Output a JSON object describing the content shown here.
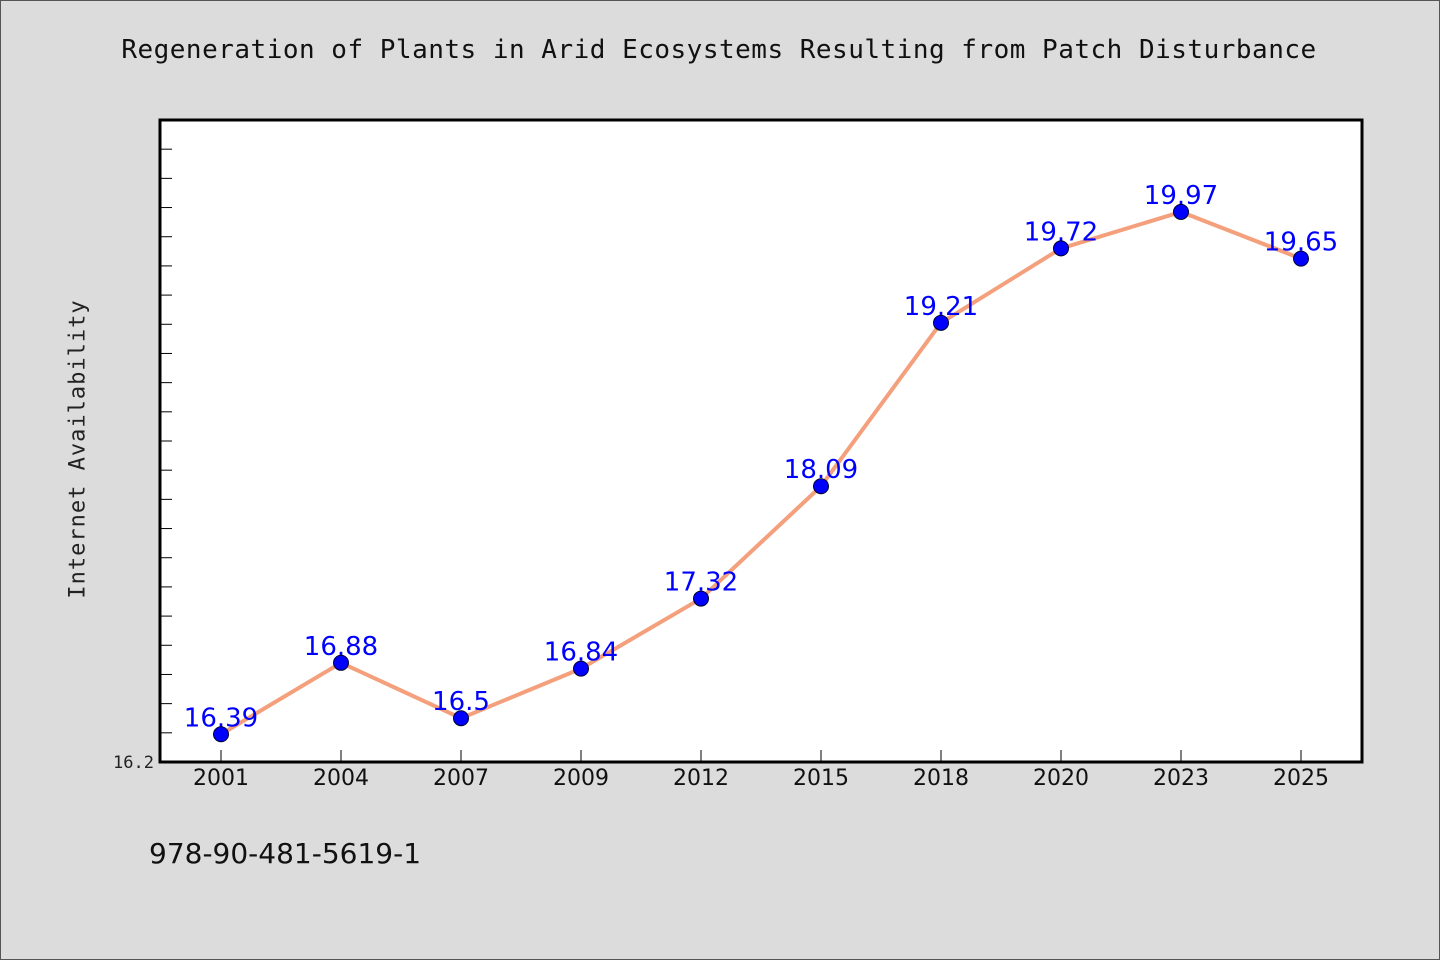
{
  "chart_data": {
    "type": "line",
    "title": "Regeneration of Plants in Arid Ecosystems Resulting from Patch Disturbance",
    "xlabel": "",
    "ylabel": "Internet Availability",
    "categories": [
      "2001",
      "2004",
      "2007",
      "2009",
      "2012",
      "2015",
      "2018",
      "2020",
      "2023",
      "2025"
    ],
    "series": [
      {
        "values": [
          16.39,
          16.88,
          16.5,
          16.84,
          17.32,
          18.09,
          19.21,
          19.72,
          19.97,
          19.65
        ]
      }
    ],
    "data_labels": [
      "16.39",
      "16.88",
      "16.5",
      "16.84",
      "17.32",
      "18.09",
      "19.21",
      "19.72",
      "19.97",
      "19.65"
    ],
    "ylim": [
      16.2,
      20.6
    ],
    "yticks": [
      16.2
    ],
    "ytick_labels": [
      "16.2"
    ],
    "grid": false,
    "legend": "none",
    "colors": {
      "line": "#f4a07c",
      "marker": "#0000ff",
      "label": "#0000ff",
      "background": "#dcdcdc",
      "plot_area": "#ffffff"
    }
  },
  "footer": {
    "code": "978-90-481-5619-1"
  }
}
